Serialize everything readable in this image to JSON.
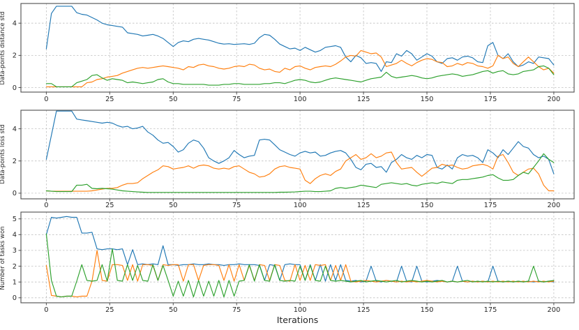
{
  "figure": {
    "background": "#ffffff",
    "text_color": "#262626",
    "grid_color": "#c0c0c0",
    "spine_color": "#4d4d4d"
  },
  "chart_data": [
    {
      "type": "line",
      "title": "",
      "xlabel": "",
      "ylabel": "Data-points distance std",
      "xlim": [
        -10,
        208
      ],
      "ylim": [
        -0.28,
        5.22
      ],
      "xticks": [
        0,
        25,
        50,
        75,
        100,
        125,
        150,
        175,
        200
      ],
      "yticks": [
        0,
        2,
        4
      ],
      "grid": true,
      "legend": "none",
      "x_start": 0,
      "x_step": 2,
      "series": [
        {
          "name": "blue",
          "color": "#1f77b4",
          "values": [
            2.4,
            4.6,
            5.05,
            5.05,
            5.05,
            5.05,
            4.65,
            4.55,
            4.5,
            4.35,
            4.2,
            4.0,
            3.9,
            3.85,
            3.8,
            3.75,
            3.4,
            3.35,
            3.3,
            3.2,
            3.25,
            3.3,
            3.2,
            3.05,
            2.8,
            2.55,
            2.8,
            2.9,
            2.85,
            3.0,
            3.05,
            3.0,
            2.95,
            2.85,
            2.75,
            2.7,
            2.72,
            2.68,
            2.7,
            2.72,
            2.68,
            2.75,
            3.1,
            3.3,
            3.25,
            3.0,
            2.7,
            2.55,
            2.4,
            2.45,
            2.3,
            2.5,
            2.35,
            2.2,
            2.3,
            2.5,
            2.55,
            2.6,
            2.5,
            1.9,
            1.6,
            2.0,
            1.85,
            1.5,
            1.55,
            1.5,
            1.0,
            1.6,
            1.55,
            2.1,
            1.95,
            2.3,
            2.1,
            1.7,
            1.9,
            2.1,
            1.95,
            1.6,
            1.5,
            1.8,
            1.85,
            1.7,
            1.9,
            1.95,
            1.85,
            1.6,
            1.55,
            2.6,
            2.8,
            2.0,
            1.8,
            2.1,
            1.6,
            1.3,
            1.4,
            1.6,
            1.5,
            1.9,
            1.85,
            1.8,
            1.4
          ]
        },
        {
          "name": "orange",
          "color": "#ff7f0e",
          "values": [
            0.05,
            0.05,
            0.05,
            0.05,
            0.05,
            0.05,
            0.05,
            0.05,
            0.3,
            0.35,
            0.5,
            0.55,
            0.65,
            0.7,
            0.75,
            0.9,
            1.0,
            1.1,
            1.2,
            1.25,
            1.2,
            1.25,
            1.3,
            1.35,
            1.3,
            1.25,
            1.2,
            1.1,
            1.3,
            1.25,
            1.4,
            1.45,
            1.35,
            1.3,
            1.2,
            1.15,
            1.2,
            1.3,
            1.35,
            1.3,
            1.45,
            1.4,
            1.2,
            1.1,
            1.15,
            1.0,
            0.95,
            1.2,
            1.1,
            1.3,
            1.35,
            1.2,
            1.1,
            1.25,
            1.3,
            1.35,
            1.3,
            1.45,
            1.65,
            1.9,
            2.0,
            1.95,
            2.3,
            2.2,
            2.1,
            2.15,
            1.9,
            1.3,
            1.4,
            1.5,
            1.7,
            1.5,
            1.35,
            1.55,
            1.7,
            1.8,
            1.75,
            1.6,
            1.55,
            1.3,
            1.35,
            1.5,
            1.4,
            1.55,
            1.5,
            1.35,
            1.3,
            1.2,
            1.35,
            2.0,
            1.8,
            1.9,
            1.5,
            1.3,
            1.6,
            1.9,
            1.6,
            1.3,
            1.1,
            1.2,
            0.9
          ]
        },
        {
          "name": "green",
          "color": "#2ca02c",
          "values": [
            0.25,
            0.25,
            0.05,
            0.05,
            0.05,
            0.05,
            0.3,
            0.4,
            0.5,
            0.75,
            0.8,
            0.6,
            0.45,
            0.55,
            0.5,
            0.45,
            0.3,
            0.35,
            0.3,
            0.25,
            0.3,
            0.35,
            0.5,
            0.55,
            0.35,
            0.25,
            0.25,
            0.2,
            0.2,
            0.2,
            0.2,
            0.2,
            0.15,
            0.15,
            0.15,
            0.2,
            0.2,
            0.25,
            0.25,
            0.2,
            0.2,
            0.2,
            0.2,
            0.25,
            0.25,
            0.3,
            0.3,
            0.25,
            0.35,
            0.45,
            0.5,
            0.45,
            0.35,
            0.3,
            0.35,
            0.45,
            0.55,
            0.6,
            0.55,
            0.5,
            0.45,
            0.4,
            0.35,
            0.45,
            0.55,
            0.6,
            0.65,
            0.95,
            0.7,
            0.6,
            0.65,
            0.7,
            0.75,
            0.7,
            0.6,
            0.55,
            0.6,
            0.7,
            0.75,
            0.8,
            0.85,
            0.8,
            0.7,
            0.75,
            0.8,
            0.9,
            1.0,
            1.05,
            0.9,
            1.0,
            1.05,
            0.85,
            0.8,
            0.85,
            1.0,
            1.05,
            1.1,
            1.3,
            1.35,
            1.2,
            0.8
          ]
        }
      ]
    },
    {
      "type": "line",
      "title": "",
      "xlabel": "",
      "ylabel": "Data-points loss std",
      "xlim": [
        -10,
        208
      ],
      "ylim": [
        -0.35,
        5.15
      ],
      "xticks": [
        0,
        25,
        50,
        75,
        100,
        125,
        150,
        175,
        200
      ],
      "yticks": [
        0,
        2,
        4
      ],
      "grid": true,
      "legend": "none",
      "x_start": 0,
      "x_step": 2,
      "series": [
        {
          "name": "blue",
          "color": "#1f77b4",
          "values": [
            2.1,
            3.6,
            5.1,
            5.1,
            5.1,
            5.1,
            4.6,
            4.55,
            4.5,
            4.45,
            4.4,
            4.35,
            4.4,
            4.35,
            4.2,
            4.1,
            4.15,
            4.0,
            4.05,
            4.15,
            3.8,
            3.6,
            3.3,
            3.1,
            3.15,
            2.9,
            2.55,
            2.7,
            3.1,
            3.3,
            3.2,
            2.8,
            2.2,
            2.0,
            1.85,
            2.0,
            2.2,
            2.65,
            2.4,
            2.2,
            2.3,
            2.35,
            3.3,
            3.35,
            3.3,
            3.0,
            2.7,
            2.55,
            2.4,
            2.3,
            2.5,
            2.6,
            2.5,
            2.55,
            2.3,
            2.35,
            2.5,
            2.6,
            2.65,
            2.5,
            2.1,
            1.6,
            1.45,
            1.8,
            1.85,
            1.6,
            1.65,
            1.3,
            1.9,
            2.1,
            2.4,
            2.2,
            2.1,
            2.35,
            2.2,
            2.4,
            2.35,
            1.6,
            1.5,
            1.75,
            1.5,
            2.2,
            2.4,
            2.3,
            2.35,
            2.2,
            1.9,
            2.7,
            2.5,
            2.2,
            2.7,
            2.4,
            2.8,
            3.2,
            2.9,
            2.8,
            2.4,
            2.2,
            2.3,
            2.1,
            1.2
          ]
        },
        {
          "name": "orange",
          "color": "#ff7f0e",
          "values": [
            0.15,
            0.12,
            0.12,
            0.12,
            0.12,
            0.12,
            0.12,
            0.12,
            0.12,
            0.15,
            0.2,
            0.25,
            0.3,
            0.3,
            0.35,
            0.5,
            0.6,
            0.6,
            0.65,
            0.9,
            1.1,
            1.3,
            1.45,
            1.7,
            1.65,
            1.5,
            1.55,
            1.6,
            1.7,
            1.55,
            1.7,
            1.75,
            1.7,
            1.55,
            1.5,
            1.55,
            1.5,
            1.65,
            1.7,
            1.5,
            1.3,
            1.2,
            1.0,
            1.05,
            1.2,
            1.5,
            1.65,
            1.7,
            1.6,
            1.55,
            1.5,
            0.8,
            0.6,
            0.9,
            1.1,
            1.2,
            1.1,
            1.35,
            1.5,
            2.0,
            2.2,
            2.4,
            2.1,
            2.2,
            2.45,
            2.2,
            2.3,
            2.5,
            2.55,
            1.9,
            1.5,
            1.55,
            1.6,
            1.3,
            1.05,
            1.3,
            1.55,
            1.6,
            1.8,
            1.7,
            1.75,
            1.6,
            1.5,
            1.55,
            1.7,
            1.75,
            1.8,
            1.7,
            1.5,
            2.3,
            2.4,
            1.9,
            1.3,
            1.1,
            1.3,
            1.5,
            1.55,
            1.2,
            0.5,
            0.15,
            0.15
          ]
        },
        {
          "name": "green",
          "color": "#2ca02c",
          "values": [
            0.15,
            0.12,
            0.1,
            0.1,
            0.1,
            0.1,
            0.5,
            0.5,
            0.55,
            0.3,
            0.28,
            0.3,
            0.28,
            0.25,
            0.2,
            0.15,
            0.12,
            0.1,
            0.08,
            0.06,
            0.05,
            0.05,
            0.05,
            0.05,
            0.05,
            0.05,
            0.05,
            0.05,
            0.05,
            0.05,
            0.05,
            0.05,
            0.05,
            0.05,
            0.05,
            0.05,
            0.05,
            0.05,
            0.05,
            0.05,
            0.05,
            0.05,
            0.05,
            0.05,
            0.05,
            0.05,
            0.06,
            0.06,
            0.07,
            0.08,
            0.1,
            0.12,
            0.12,
            0.1,
            0.1,
            0.12,
            0.15,
            0.3,
            0.35,
            0.3,
            0.35,
            0.4,
            0.5,
            0.45,
            0.4,
            0.35,
            0.55,
            0.6,
            0.65,
            0.6,
            0.55,
            0.6,
            0.5,
            0.45,
            0.55,
            0.6,
            0.65,
            0.6,
            0.7,
            0.65,
            0.6,
            0.8,
            0.85,
            0.85,
            0.9,
            0.95,
            1.0,
            1.1,
            1.15,
            0.95,
            0.8,
            0.8,
            0.85,
            1.1,
            1.3,
            1.2,
            1.6,
            2.0,
            2.45,
            2.1,
            1.9
          ]
        }
      ]
    },
    {
      "type": "line",
      "title": "",
      "xlabel": "Iterations",
      "ylabel": "Number of tasks won",
      "xlim": [
        -10,
        208
      ],
      "ylim": [
        -0.32,
        5.43
      ],
      "xticks": [
        0,
        25,
        50,
        75,
        100,
        125,
        150,
        175,
        200
      ],
      "yticks": [
        0,
        1,
        2,
        3,
        4,
        5
      ],
      "grid": true,
      "legend": "none",
      "x_start": 0,
      "x_step": 2,
      "series": [
        {
          "name": "blue",
          "color": "#1f77b4",
          "values": [
            4.0,
            5.1,
            5.05,
            5.1,
            5.15,
            5.1,
            5.1,
            4.1,
            4.1,
            4.15,
            3.1,
            3.05,
            3.1,
            3.1,
            3.05,
            3.1,
            2.1,
            3.05,
            2.1,
            2.15,
            2.1,
            2.15,
            2.1,
            3.3,
            2.1,
            2.1,
            2.05,
            2.1,
            2.1,
            2.15,
            2.1,
            2.1,
            2.15,
            2.1,
            2.1,
            2.05,
            2.1,
            2.1,
            2.15,
            2.1,
            2.1,
            2.1,
            2.05,
            1.1,
            2.1,
            2.05,
            1.1,
            2.1,
            2.15,
            2.1,
            2.1,
            1.1,
            2.1,
            1.1,
            2.1,
            1.05,
            2.1,
            1.1,
            2.1,
            1.1,
            1.05,
            1.1,
            1.0,
            1.05,
            2.0,
            1.05,
            1.0,
            1.1,
            1.05,
            1.0,
            2.0,
            1.05,
            1.0,
            2.0,
            1.05,
            1.0,
            1.05,
            1.1,
            1.05,
            1.0,
            1.05,
            2.0,
            1.05,
            1.0,
            1.05,
            1.0,
            1.05,
            1.0,
            2.0,
            1.05,
            1.0,
            1.05,
            1.0,
            1.05,
            1.0,
            1.05,
            1.0,
            1.05,
            1.0,
            1.05,
            1.0
          ]
        },
        {
          "name": "orange",
          "color": "#ff7f0e",
          "values": [
            2.05,
            0.15,
            0.1,
            0.05,
            0.1,
            0.1,
            0.05,
            0.1,
            0.1,
            1.05,
            3.0,
            1.1,
            1.05,
            2.1,
            2.1,
            2.05,
            1.1,
            2.1,
            1.05,
            2.1,
            2.1,
            2.05,
            1.1,
            2.1,
            2.05,
            2.1,
            2.1,
            1.05,
            2.1,
            2.1,
            1.1,
            2.05,
            2.1,
            2.1,
            2.05,
            1.1,
            2.1,
            1.05,
            2.1,
            1.1,
            2.05,
            1.1,
            2.1,
            2.05,
            1.1,
            2.1,
            2.05,
            1.1,
            1.05,
            2.1,
            1.1,
            2.05,
            1.1,
            2.1,
            2.05,
            2.1,
            1.1,
            2.05,
            1.1,
            2.1,
            1.05,
            1.0,
            1.05,
            1.1,
            1.05,
            1.0,
            1.05,
            1.1,
            1.05,
            1.0,
            1.05,
            1.0,
            1.05,
            1.0,
            1.05,
            1.1,
            1.05,
            1.0,
            1.05,
            1.0,
            1.05,
            1.0,
            1.05,
            1.0,
            1.05,
            1.0,
            1.05,
            1.0,
            1.05,
            1.0,
            1.05,
            1.0,
            1.05,
            1.0,
            1.05,
            1.0,
            1.05,
            1.0,
            1.05,
            1.0,
            1.05
          ]
        },
        {
          "name": "green",
          "color": "#2ca02c",
          "values": [
            4.05,
            1.1,
            0.1,
            0.05,
            0.1,
            0.1,
            1.05,
            2.1,
            1.1,
            1.05,
            1.1,
            2.1,
            1.05,
            3.1,
            1.1,
            1.05,
            2.1,
            1.1,
            2.05,
            1.1,
            1.05,
            2.1,
            1.1,
            2.05,
            1.1,
            0.1,
            1.05,
            0.1,
            1.1,
            0.05,
            1.1,
            0.1,
            1.05,
            0.1,
            1.1,
            0.05,
            1.1,
            0.1,
            1.05,
            1.1,
            2.1,
            1.05,
            2.1,
            1.1,
            1.05,
            2.1,
            1.1,
            1.05,
            1.1,
            1.05,
            2.0,
            1.1,
            2.05,
            1.1,
            1.05,
            2.0,
            1.1,
            1.05,
            1.1,
            1.05,
            1.0,
            1.05,
            1.1,
            1.0,
            1.05,
            1.1,
            1.05,
            1.0,
            1.05,
            1.1,
            1.0,
            1.05,
            1.1,
            1.05,
            1.0,
            1.05,
            1.0,
            1.05,
            1.1,
            1.0,
            1.05,
            1.0,
            1.05,
            1.1,
            1.0,
            1.05,
            1.0,
            1.05,
            1.0,
            1.05,
            1.0,
            1.05,
            1.0,
            1.05,
            1.0,
            1.05,
            2.0,
            1.05,
            1.0,
            1.05,
            1.1
          ]
        }
      ]
    }
  ]
}
